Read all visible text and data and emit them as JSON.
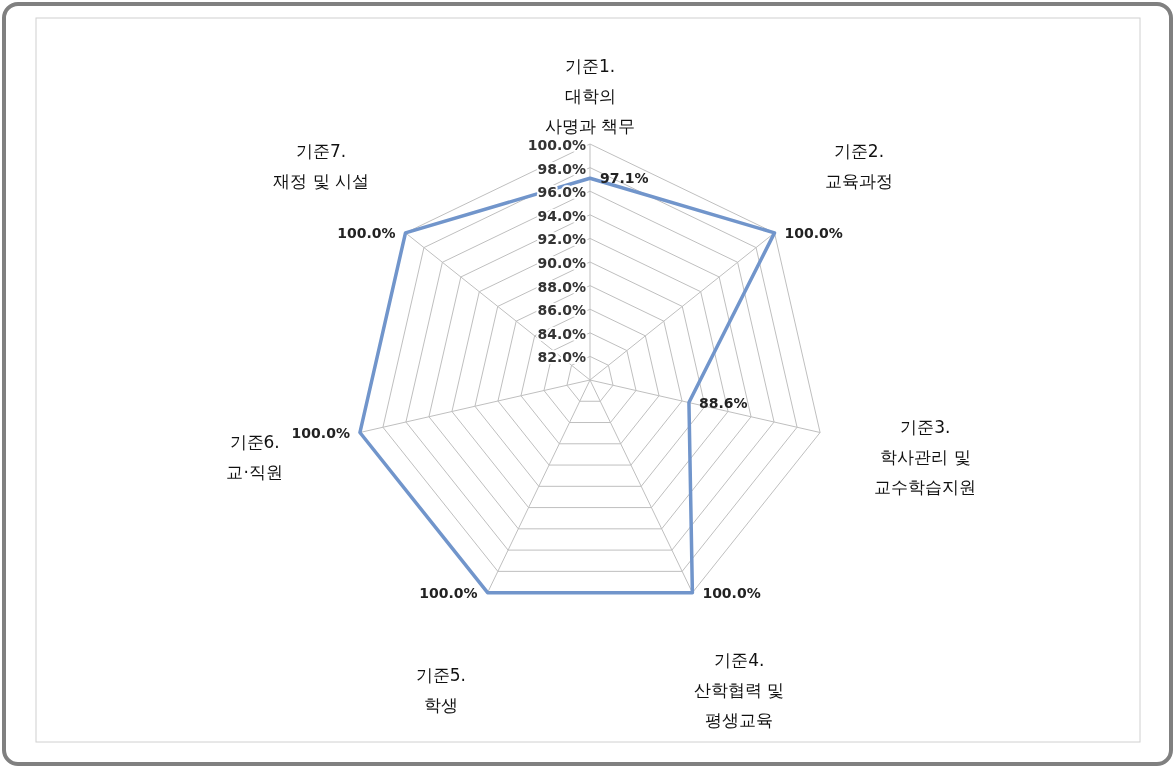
{
  "chart_data": {
    "type": "radar",
    "categories": [
      "기준1.\n대학의\n사명과 책무",
      "기준2.\n교육과정",
      "기준3.\n학사관리 및\n교수학습지원",
      "기준4.\n산학협력 및\n평생교육",
      "기준5.\n학생",
      "기준6.\n교·직원",
      "기준7.\n재정 및 시설"
    ],
    "series": [
      {
        "color": "#7195cb",
        "values": [
          97.1,
          100,
          88.6,
          100,
          100,
          100,
          100
        ],
        "value_labels": [
          "97.1%",
          "100.0%",
          "88.6%",
          "100.0%",
          "100.0%",
          "100.0%",
          "100.0%"
        ]
      }
    ],
    "ylim": [
      80,
      100
    ],
    "yticks": [
      {
        "value": 82,
        "label": "82.0%"
      },
      {
        "value": 84,
        "label": "84.0%"
      },
      {
        "value": 86,
        "label": "86.0%"
      },
      {
        "value": 88,
        "label": "88.0%"
      },
      {
        "value": 90,
        "label": "90.0%"
      },
      {
        "value": 92,
        "label": "92.0%"
      },
      {
        "value": 94,
        "label": "94.0%"
      },
      {
        "value": 96,
        "label": "96.0%"
      },
      {
        "value": 98,
        "label": "98.0%"
      },
      {
        "value": 100,
        "label": "100.0%"
      }
    ],
    "grid": true,
    "marker": "none",
    "line_style": "solid"
  }
}
